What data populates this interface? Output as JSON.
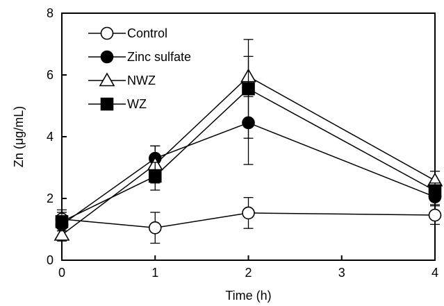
{
  "chart_data": {
    "type": "line",
    "title": "",
    "xlabel": "Time (h)",
    "ylabel": "Zn (μg/mL)",
    "xlim": [
      0,
      4
    ],
    "ylim": [
      0,
      8
    ],
    "xticks": [
      0,
      1,
      2,
      3,
      4
    ],
    "yticks": [
      0,
      2,
      4,
      6,
      8
    ],
    "xtick_labels": [
      "0",
      "1",
      "2",
      "3",
      "4"
    ],
    "ytick_labels": [
      "0",
      "2",
      "4",
      "6",
      "8"
    ],
    "grid": false,
    "legend_position": "top-left",
    "series": [
      {
        "name": "Control",
        "marker": "circle-open",
        "x": [
          0,
          1,
          2,
          4
        ],
        "y": [
          1.33,
          1.05,
          1.53,
          1.46
        ],
        "error": [
          0.3,
          0.5,
          0.5,
          0.3
        ]
      },
      {
        "name": "Zinc sulfate",
        "marker": "circle-filled",
        "x": [
          0,
          1,
          2,
          4
        ],
        "y": [
          1.15,
          3.3,
          4.45,
          2.05
        ],
        "error": [
          0.2,
          0.4,
          1.35,
          0.25
        ]
      },
      {
        "name": "NWZ",
        "marker": "triangle-open",
        "x": [
          0,
          1,
          2,
          4
        ],
        "y": [
          0.82,
          3.1,
          5.95,
          2.58
        ],
        "error": [
          0.2,
          0.6,
          0.65,
          0.3
        ]
      },
      {
        "name": "WZ",
        "marker": "square-filled",
        "x": [
          0,
          1,
          2,
          4
        ],
        "y": [
          1.25,
          2.72,
          5.55,
          2.25
        ],
        "error": [
          0.3,
          0.45,
          1.6,
          0.25
        ]
      }
    ]
  }
}
